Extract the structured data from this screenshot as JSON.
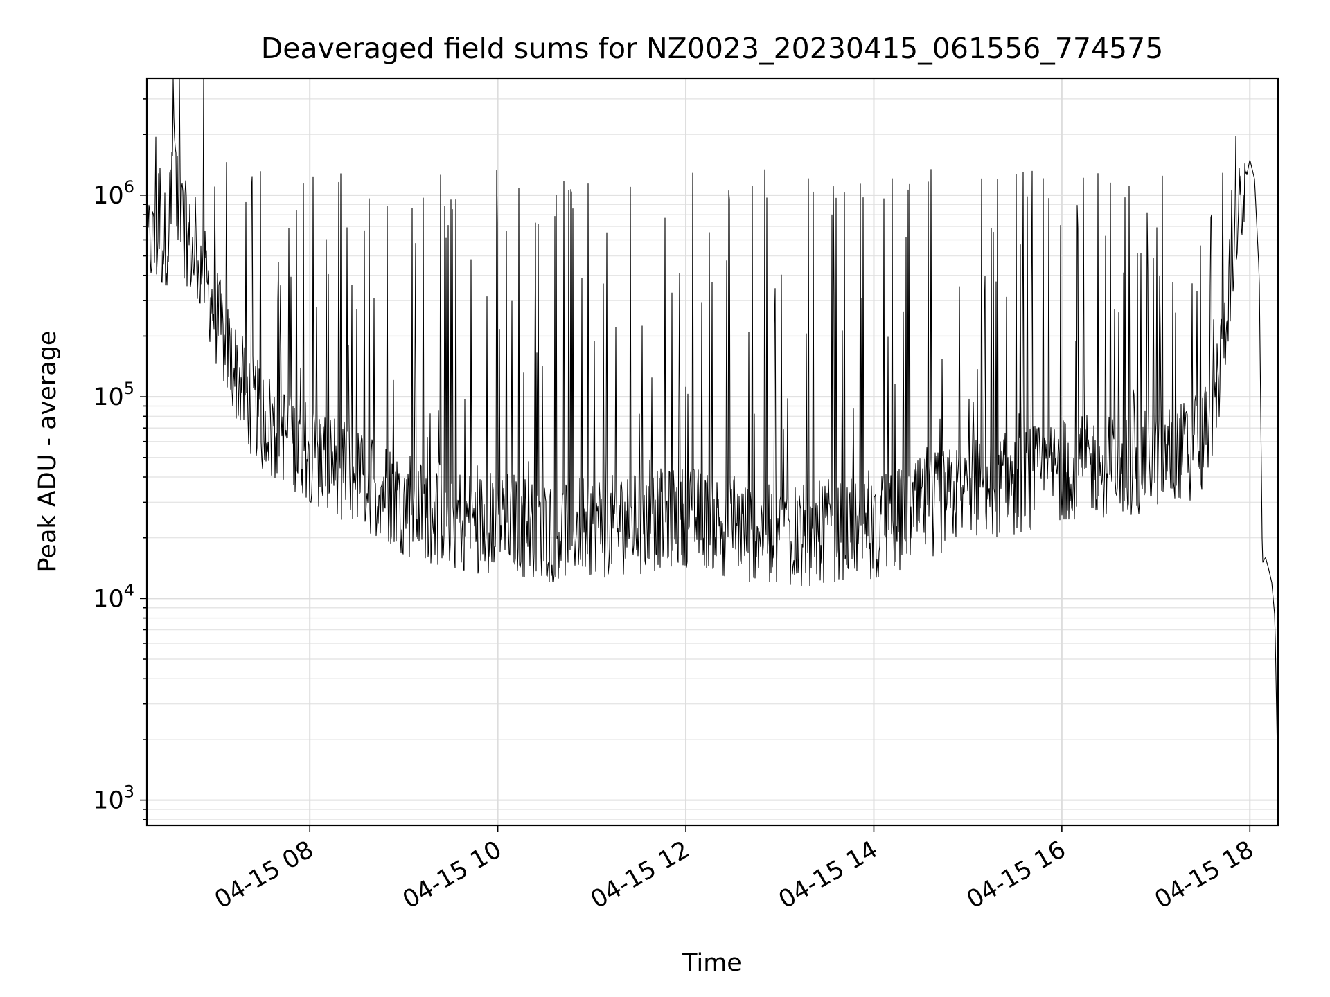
{
  "chart_data": {
    "type": "line",
    "title": "Deaveraged field sums for NZ0023_20230415_061556_774575",
    "xlabel": "Time",
    "ylabel": "Peak ADU - average",
    "yscale": "log",
    "ylim": [
      750,
      3800000
    ],
    "xlim": [
      "2023-04-15 06:16",
      "2023-04-15 18:18"
    ],
    "xticks": [
      "2023-04-15 08:00",
      "2023-04-15 10:00",
      "2023-04-15 12:00",
      "2023-04-15 14:00",
      "2023-04-15 16:00",
      "2023-04-15 18:00"
    ],
    "xtick_labels": [
      "04-15 08",
      "04-15 10",
      "04-15 12",
      "04-15 14",
      "04-15 16",
      "04-15 18"
    ],
    "yticks": [
      {
        "base": "10",
        "exp": "3",
        "value": 1000
      },
      {
        "base": "10",
        "exp": "4",
        "value": 10000
      },
      {
        "base": "10",
        "exp": "5",
        "value": 100000
      },
      {
        "base": "10",
        "exp": "6",
        "value": 1000000
      }
    ],
    "grid": true,
    "line_color": "#000000",
    "series": [
      {
        "x": [
          "2023-04-15 06:16",
          "2023-04-15 06:20",
          "2023-04-15 06:25",
          "2023-04-15 06:30",
          "2023-04-15 06:33",
          "2023-04-15 06:35",
          "2023-04-15 06:40",
          "2023-04-15 06:45",
          "2023-04-15 06:50",
          "2023-04-15 06:55",
          "2023-04-15 07:00",
          "2023-04-15 07:10",
          "2023-04-15 07:20",
          "2023-04-15 07:30",
          "2023-04-15 07:40",
          "2023-04-15 07:50",
          "2023-04-15 08:00",
          "2023-04-15 08:10",
          "2023-04-15 08:20",
          "2023-04-15 08:30",
          "2023-04-15 08:40",
          "2023-04-15 08:50",
          "2023-04-15 09:00",
          "2023-04-15 09:10",
          "2023-04-15 09:20",
          "2023-04-15 09:30",
          "2023-04-15 09:40",
          "2023-04-15 09:50",
          "2023-04-15 10:00",
          "2023-04-15 10:10",
          "2023-04-15 10:20",
          "2023-04-15 10:30",
          "2023-04-15 10:40",
          "2023-04-15 10:50",
          "2023-04-15 11:00",
          "2023-04-15 11:10",
          "2023-04-15 11:20",
          "2023-04-15 11:30",
          "2023-04-15 11:40",
          "2023-04-15 11:50",
          "2023-04-15 12:00",
          "2023-04-15 12:10",
          "2023-04-15 12:20",
          "2023-04-15 12:30",
          "2023-04-15 12:40",
          "2023-04-15 12:50",
          "2023-04-15 13:00",
          "2023-04-15 13:10",
          "2023-04-15 13:20",
          "2023-04-15 13:30",
          "2023-04-15 13:40",
          "2023-04-15 13:50",
          "2023-04-15 14:00",
          "2023-04-15 14:10",
          "2023-04-15 14:20",
          "2023-04-15 14:30",
          "2023-04-15 14:40",
          "2023-04-15 14:50",
          "2023-04-15 15:00",
          "2023-04-15 15:10",
          "2023-04-15 15:20",
          "2023-04-15 15:30",
          "2023-04-15 15:40",
          "2023-04-15 15:50",
          "2023-04-15 16:00",
          "2023-04-15 16:10",
          "2023-04-15 16:20",
          "2023-04-15 16:30",
          "2023-04-15 16:40",
          "2023-04-15 16:50",
          "2023-04-15 17:00",
          "2023-04-15 17:10",
          "2023-04-15 17:20",
          "2023-04-15 17:30",
          "2023-04-15 17:40",
          "2023-04-15 17:50",
          "2023-04-15 18:00",
          "2023-04-15 18:03",
          "2023-04-15 18:06",
          "2023-04-15 18:08",
          "2023-04-15 18:10",
          "2023-04-15 18:12",
          "2023-04-15 18:14",
          "2023-04-15 18:16",
          "2023-04-15 18:18"
        ],
        "y": [
          560000,
          600000,
          580000,
          650000,
          2700000,
          900000,
          700000,
          500000,
          450000,
          350000,
          250000,
          150000,
          100000,
          80000,
          70000,
          60000,
          55000,
          50000,
          45000,
          40000,
          38000,
          35000,
          30000,
          28000,
          27000,
          26000,
          25000,
          24000,
          25000,
          24000,
          23000,
          22000,
          22000,
          23000,
          24000,
          23000,
          24000,
          24000,
          25000,
          25000,
          26000,
          25000,
          24000,
          23000,
          22000,
          22000,
          22000,
          21000,
          21000,
          22000,
          22000,
          22000,
          23000,
          24000,
          26000,
          28000,
          30000,
          32000,
          34000,
          36000,
          37000,
          38000,
          40000,
          42000,
          45000,
          45000,
          46000,
          46000,
          47000,
          48000,
          50000,
          52000,
          55000,
          60000,
          120000,
          600000,
          1500000,
          1200000,
          400000,
          15000,
          16000,
          14000,
          12000,
          8000,
          1100
        ]
      }
    ]
  }
}
